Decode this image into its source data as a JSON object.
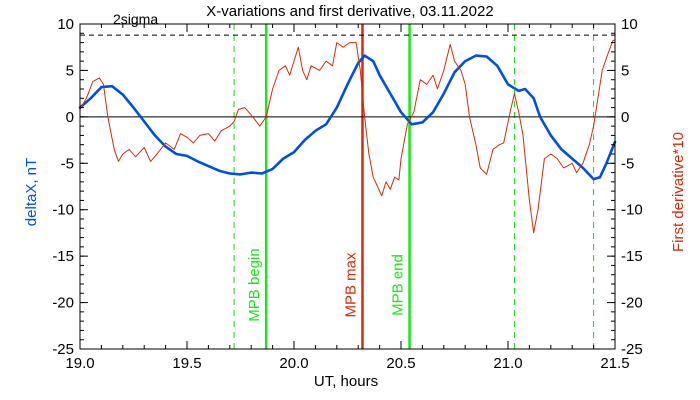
{
  "chart_data": {
    "type": "line",
    "title": "X-variations and first derivative, 03.11.2022",
    "xlabel": "UT, hours",
    "ylabel_left": "deltaX, nT",
    "ylabel_right": "First derivative*10",
    "xlim": [
      19.0,
      21.5
    ],
    "ylim": [
      -25,
      10
    ],
    "x_ticks": [
      "19.0",
      "19.5",
      "20.0",
      "20.5",
      "21.0",
      "21.5"
    ],
    "y_ticks": [
      "10",
      "5",
      "0",
      "-5",
      "-10",
      "-15",
      "-20",
      "-25"
    ],
    "threshold": {
      "label": "2sigma",
      "value": 8.8
    },
    "colors": {
      "deltaX": "#0050dc",
      "derivative": "#d22d0a",
      "mpb": "#18e618",
      "mpb_max": "#d22d0a",
      "dashed_green": "#18d218",
      "axes": "#000000"
    },
    "vlines": [
      {
        "x": 19.72,
        "style": "dashed",
        "color": "#18d218",
        "label": ""
      },
      {
        "x": 19.87,
        "style": "solid",
        "color": "#18e618",
        "label": "MPB begin"
      },
      {
        "x": 20.32,
        "style": "solid",
        "color": "#d22d0a",
        "label": "MPB max"
      },
      {
        "x": 20.54,
        "style": "solid",
        "color": "#18e618",
        "label": "MPB end"
      },
      {
        "x": 21.03,
        "style": "dashed",
        "color": "#18d218",
        "label": ""
      },
      {
        "x": 21.4,
        "style": "dashed",
        "color": "#18d218",
        "label": ""
      }
    ],
    "series": [
      {
        "name": "deltaX, nT",
        "points": [
          [
            19.0,
            1.0
          ],
          [
            19.05,
            2.0
          ],
          [
            19.1,
            3.2
          ],
          [
            19.15,
            3.3
          ],
          [
            19.2,
            2.4
          ],
          [
            19.25,
            1.0
          ],
          [
            19.3,
            -0.5
          ],
          [
            19.35,
            -2.0
          ],
          [
            19.4,
            -3.2
          ],
          [
            19.45,
            -4.0
          ],
          [
            19.5,
            -4.2
          ],
          [
            19.55,
            -4.8
          ],
          [
            19.6,
            -5.3
          ],
          [
            19.65,
            -5.8
          ],
          [
            19.7,
            -6.1
          ],
          [
            19.75,
            -6.2
          ],
          [
            19.8,
            -6.0
          ],
          [
            19.85,
            -6.1
          ],
          [
            19.9,
            -5.6
          ],
          [
            19.95,
            -4.5
          ],
          [
            20.0,
            -3.8
          ],
          [
            20.05,
            -2.5
          ],
          [
            20.1,
            -1.5
          ],
          [
            20.15,
            -0.8
          ],
          [
            20.2,
            1.0
          ],
          [
            20.25,
            3.5
          ],
          [
            20.3,
            5.8
          ],
          [
            20.33,
            6.6
          ],
          [
            20.37,
            6.0
          ],
          [
            20.4,
            4.5
          ],
          [
            20.45,
            2.5
          ],
          [
            20.5,
            0.5
          ],
          [
            20.55,
            -0.8
          ],
          [
            20.6,
            -0.6
          ],
          [
            20.65,
            0.5
          ],
          [
            20.7,
            2.5
          ],
          [
            20.75,
            4.8
          ],
          [
            20.8,
            6.0
          ],
          [
            20.85,
            6.6
          ],
          [
            20.9,
            6.5
          ],
          [
            20.95,
            5.5
          ],
          [
            21.0,
            3.5
          ],
          [
            21.05,
            2.8
          ],
          [
            21.08,
            3.0
          ],
          [
            21.12,
            2.0
          ],
          [
            21.15,
            0.0
          ],
          [
            21.2,
            -2.0
          ],
          [
            21.25,
            -3.5
          ],
          [
            21.3,
            -4.5
          ],
          [
            21.35,
            -5.5
          ],
          [
            21.4,
            -6.7
          ],
          [
            21.43,
            -6.5
          ],
          [
            21.46,
            -5.0
          ],
          [
            21.5,
            -2.7
          ]
        ]
      },
      {
        "name": "First derivative*10",
        "points": [
          [
            19.0,
            0.8
          ],
          [
            19.03,
            2.0
          ],
          [
            19.06,
            3.8
          ],
          [
            19.09,
            4.2
          ],
          [
            19.11,
            3.5
          ],
          [
            19.13,
            0.0
          ],
          [
            19.16,
            -3.5
          ],
          [
            19.18,
            -4.8
          ],
          [
            19.2,
            -4.0
          ],
          [
            19.23,
            -3.5
          ],
          [
            19.26,
            -4.3
          ],
          [
            19.3,
            -3.3
          ],
          [
            19.33,
            -4.8
          ],
          [
            19.36,
            -4.0
          ],
          [
            19.4,
            -2.8
          ],
          [
            19.44,
            -3.5
          ],
          [
            19.47,
            -1.8
          ],
          [
            19.5,
            -2.2
          ],
          [
            19.53,
            -2.8
          ],
          [
            19.56,
            -2.0
          ],
          [
            19.6,
            -1.8
          ],
          [
            19.63,
            -2.6
          ],
          [
            19.66,
            -1.5
          ],
          [
            19.7,
            -1.0
          ],
          [
            19.72,
            -0.5
          ],
          [
            19.74,
            0.8
          ],
          [
            19.77,
            1.0
          ],
          [
            19.8,
            0.2
          ],
          [
            19.84,
            -1.0
          ],
          [
            19.87,
            0.0
          ],
          [
            19.9,
            3.0
          ],
          [
            19.93,
            5.0
          ],
          [
            19.96,
            5.5
          ],
          [
            19.98,
            4.5
          ],
          [
            20.0,
            6.0
          ],
          [
            20.02,
            7.5
          ],
          [
            20.04,
            5.0
          ],
          [
            20.06,
            4.0
          ],
          [
            20.08,
            5.5
          ],
          [
            20.12,
            5.0
          ],
          [
            20.15,
            6.0
          ],
          [
            20.18,
            5.5
          ],
          [
            20.2,
            8.0
          ],
          [
            20.23,
            7.5
          ],
          [
            20.26,
            8.0
          ],
          [
            20.29,
            8.0
          ],
          [
            20.31,
            5.0
          ],
          [
            20.33,
            0.0
          ],
          [
            20.35,
            -4.0
          ],
          [
            20.37,
            -6.5
          ],
          [
            20.39,
            -7.5
          ],
          [
            20.41,
            -8.5
          ],
          [
            20.43,
            -7.0
          ],
          [
            20.45,
            -7.8
          ],
          [
            20.47,
            -6.5
          ],
          [
            20.49,
            -6.8
          ],
          [
            20.5,
            -4.5
          ],
          [
            20.53,
            -0.8
          ],
          [
            20.56,
            0.5
          ],
          [
            20.59,
            4.0
          ],
          [
            20.62,
            3.5
          ],
          [
            20.65,
            4.5
          ],
          [
            20.67,
            3.0
          ],
          [
            20.7,
            5.0
          ],
          [
            20.73,
            7.8
          ],
          [
            20.75,
            6.0
          ],
          [
            20.78,
            5.0
          ],
          [
            20.8,
            3.5
          ],
          [
            20.82,
            0.0
          ],
          [
            20.85,
            -3.0
          ],
          [
            20.87,
            -5.5
          ],
          [
            20.9,
            -6.2
          ],
          [
            20.93,
            -3.5
          ],
          [
            20.96,
            -3.0
          ],
          [
            20.98,
            -2.8
          ],
          [
            21.01,
            0.5
          ],
          [
            21.03,
            2.5
          ],
          [
            21.05,
            0.5
          ],
          [
            21.07,
            -2.0
          ],
          [
            21.1,
            -9.0
          ],
          [
            21.12,
            -12.5
          ],
          [
            21.14,
            -10.0
          ],
          [
            21.17,
            -4.5
          ],
          [
            21.2,
            -4.0
          ],
          [
            21.23,
            -4.5
          ],
          [
            21.26,
            -5.5
          ],
          [
            21.3,
            -5.0
          ],
          [
            21.32,
            -6.0
          ],
          [
            21.35,
            -5.0
          ],
          [
            21.38,
            -3.0
          ],
          [
            21.4,
            -1.0
          ],
          [
            21.42,
            2.0
          ],
          [
            21.44,
            5.0
          ],
          [
            21.47,
            7.0
          ],
          [
            21.49,
            8.2
          ],
          [
            21.5,
            8.3
          ]
        ]
      }
    ]
  }
}
